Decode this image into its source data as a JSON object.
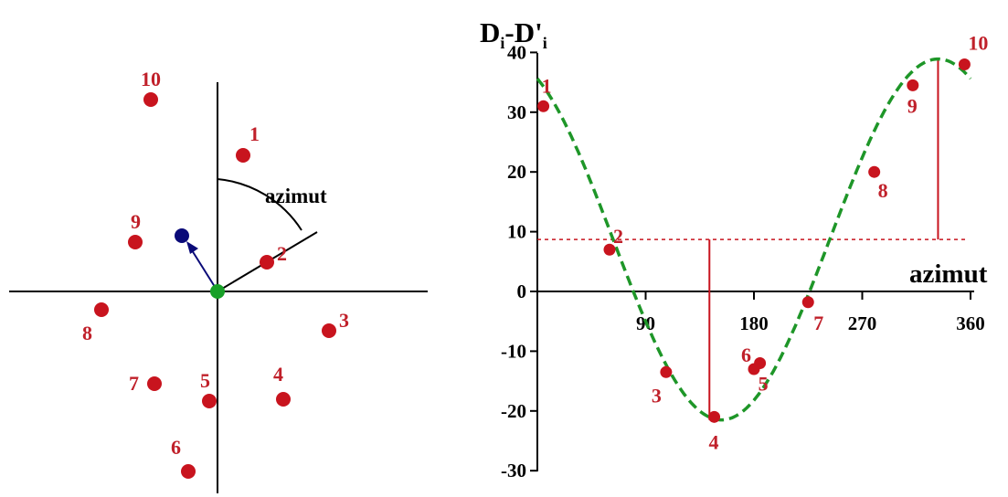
{
  "left_panel": {
    "angle_label": "azimut",
    "points": [
      {
        "id": "p1",
        "label": "1"
      },
      {
        "id": "p2",
        "label": "2"
      },
      {
        "id": "p3",
        "label": "3"
      },
      {
        "id": "p4",
        "label": "4"
      },
      {
        "id": "p5",
        "label": "5"
      },
      {
        "id": "p6",
        "label": "6"
      },
      {
        "id": "p7",
        "label": "7"
      },
      {
        "id": "p8",
        "label": "8"
      },
      {
        "id": "p9",
        "label": "9"
      },
      {
        "id": "p10",
        "label": "10"
      }
    ],
    "colors": {
      "points": "#c8141e",
      "labels": "#c0202a",
      "origin": "#18a028",
      "vector": "#0a0a78",
      "axes": "#000000"
    }
  },
  "chart_data": {
    "type": "scatter",
    "ylabel_main": "D",
    "ylabel_sub1": "i",
    "ylabel_mid": "-D'",
    "ylabel_sub2": "i",
    "xlabel": "azimut",
    "x_ticks": [
      "90",
      "180",
      "270",
      "360"
    ],
    "y_ticks": [
      "40",
      "30",
      "20",
      "10",
      "0",
      "-10",
      "-20",
      "-30"
    ],
    "ylim": [
      -30,
      40
    ],
    "xlim": [
      0,
      360
    ],
    "points": [
      {
        "label": "1",
        "x": 5,
        "y": 31
      },
      {
        "label": "2",
        "x": 60,
        "y": 7
      },
      {
        "label": "3",
        "x": 107,
        "y": -13.5
      },
      {
        "label": "4",
        "x": 147,
        "y": -21
      },
      {
        "label": "5",
        "x": 185,
        "y": -12
      },
      {
        "label": "6",
        "x": 180,
        "y": -13
      },
      {
        "label": "7",
        "x": 225,
        "y": -1.8
      },
      {
        "label": "8",
        "x": 280,
        "y": 20
      },
      {
        "label": "9",
        "x": 312,
        "y": 34.5
      },
      {
        "label": "10",
        "x": 355,
        "y": 38
      }
    ],
    "fit_curve": {
      "mean": 8.7,
      "amplitude": 30.2,
      "peak_azimuth": 333
    },
    "mean_line_y": 8.7,
    "amplitude_lines": [
      {
        "x": 143,
        "y_from": 8.7,
        "y_to": -21.5
      },
      {
        "x": 333,
        "y_from": 8.7,
        "y_to": 38.9
      }
    ],
    "grid": false,
    "colors": {
      "points": "#c8141e",
      "curve": "#1e9628",
      "mean_line": "#c8141e",
      "labels": "#c0202a"
    }
  }
}
